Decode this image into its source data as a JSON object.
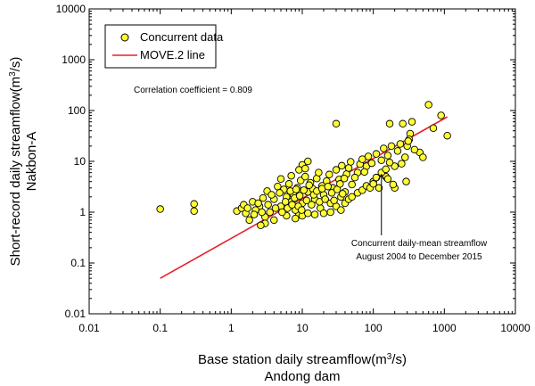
{
  "chart_data": {
    "type": "scatter",
    "log_x": true,
    "log_y": true,
    "xlim": [
      0.01,
      10000
    ],
    "ylim": [
      0.01,
      10000
    ],
    "x_ticks": [
      "0.01",
      "0.1",
      "1",
      "10",
      "100",
      "1000",
      "10000"
    ],
    "y_ticks": [
      "0.01",
      "0.1",
      "1",
      "10",
      "100",
      "1000",
      "10000"
    ],
    "xlabel_line1": "Base station daily streamflow(m",
    "xlabel_sup": "3",
    "xlabel_tail": "/s)",
    "xlabel_line2": "Andong dam",
    "ylabel_line1": "Short-record daily streamflow(m",
    "ylabel_sup": "3",
    "ylabel_tail": "/s)",
    "ylabel_line2": "Nakbon-A",
    "legend": {
      "position": "top-left",
      "items": [
        {
          "name": "Concurrent data",
          "marker": "circle"
        },
        {
          "name": "MOVE.2 line",
          "marker": "line"
        }
      ]
    },
    "annotations": {
      "correlation": "Correlation coefficient = 0.809",
      "note_line1": "Concurrent daily-mean streamflow",
      "note_line2": "August 2004 to December 2015",
      "arrow_tip": [
        130,
        5.5
      ]
    },
    "colors": {
      "points_fill": "#ffff33",
      "points_stroke": "#000000",
      "line": "#e8202a"
    },
    "series": [
      {
        "name": "Concurrent data",
        "type": "scatter",
        "points": [
          [
            0.1,
            1.15
          ],
          [
            0.3,
            1.05
          ],
          [
            0.3,
            1.45
          ],
          [
            1.2,
            1.05
          ],
          [
            1.4,
            1.2
          ],
          [
            600,
            130
          ],
          [
            900,
            80
          ],
          [
            1100,
            32
          ],
          [
            700,
            45
          ],
          [
            350,
            60
          ],
          [
            330,
            35
          ],
          [
            320,
            27
          ],
          [
            260,
            55
          ],
          [
            30,
            55
          ],
          [
            170,
            55
          ],
          [
            300,
            20
          ],
          [
            450,
            15
          ],
          [
            500,
            12
          ],
          [
            250,
            9
          ],
          [
            200,
            8
          ],
          [
            150,
            5
          ],
          [
            160,
            4.5
          ],
          [
            200,
            3
          ],
          [
            190,
            3.5
          ],
          [
            290,
            4
          ],
          [
            60,
            6
          ],
          [
            80,
            8
          ],
          [
            100,
            4
          ],
          [
            120,
            3
          ],
          [
            50,
            3.5
          ],
          [
            40,
            2.5
          ],
          [
            35,
            2
          ],
          [
            25,
            1.5
          ],
          [
            20,
            2.2
          ],
          [
            18,
            1.2
          ],
          [
            15,
            1.8
          ],
          [
            12,
            2.5
          ],
          [
            10,
            1.5
          ],
          [
            9,
            0.9
          ],
          [
            8,
            1.1
          ],
          [
            7,
            1.6
          ],
          [
            6,
            2
          ],
          [
            5,
            1.3
          ],
          [
            4,
            1.8
          ],
          [
            3.5,
            1.0
          ],
          [
            3,
            0.8
          ],
          [
            2.5,
            1.3
          ],
          [
            2,
            1.6
          ],
          [
            1.8,
            0.7
          ],
          [
            1.6,
            0.95
          ],
          [
            2.2,
            1.1
          ],
          [
            2.8,
            1.9
          ],
          [
            3.2,
            2.6
          ],
          [
            4.5,
            3.2
          ],
          [
            5.5,
            2.8
          ],
          [
            6.5,
            3.6
          ],
          [
            7.5,
            2.2
          ],
          [
            8.5,
            3.0
          ],
          [
            9.5,
            4.2
          ],
          [
            11,
            5.0
          ],
          [
            13,
            3.8
          ],
          [
            14,
            2.9
          ],
          [
            16,
            4.6
          ],
          [
            17,
            6.0
          ],
          [
            19,
            3.3
          ],
          [
            22,
            4.1
          ],
          [
            24,
            5.5
          ],
          [
            27,
            3.0
          ],
          [
            30,
            6.8
          ],
          [
            33,
            4.4
          ],
          [
            36,
            8.2
          ],
          [
            42,
            5.6
          ],
          [
            45,
            7.4
          ],
          [
            48,
            9.8
          ],
          [
            55,
            4.8
          ],
          [
            65,
            8.8
          ],
          [
            70,
            11
          ],
          [
            75,
            6.2
          ],
          [
            85,
            12.5
          ],
          [
            95,
            9.2
          ],
          [
            110,
            14
          ],
          [
            130,
            10.5
          ],
          [
            140,
            18
          ],
          [
            160,
            13
          ],
          [
            180,
            20
          ],
          [
            220,
            16
          ],
          [
            240,
            22
          ],
          [
            280,
            12
          ],
          [
            310,
            25
          ],
          [
            380,
            17
          ],
          [
            10,
            8.5
          ],
          [
            12,
            10
          ],
          [
            9,
            6.8
          ],
          [
            11,
            7.2
          ],
          [
            7,
            5.2
          ],
          [
            5,
            4.5
          ],
          [
            8,
            0.75
          ],
          [
            10,
            0.85
          ],
          [
            12,
            0.95
          ],
          [
            15,
            0.9
          ],
          [
            6,
            0.85
          ],
          [
            4,
            0.7
          ],
          [
            3,
            0.6
          ],
          [
            2.6,
            0.55
          ],
          [
            20,
            0.95
          ],
          [
            25,
            1.0
          ],
          [
            30,
            1.3
          ],
          [
            35,
            1.1
          ],
          [
            40,
            1.5
          ],
          [
            45,
            1.8
          ],
          [
            50,
            2.0
          ],
          [
            60,
            2.4
          ],
          [
            70,
            2.7
          ],
          [
            80,
            3.3
          ],
          [
            90,
            3.0
          ],
          [
            100,
            3.6
          ],
          [
            110,
            4.8
          ],
          [
            130,
            6.0
          ],
          [
            150,
            7.0
          ],
          [
            170,
            9.5
          ],
          [
            1.5,
            1.4
          ],
          [
            1.7,
            1.2
          ],
          [
            2.1,
            0.9
          ],
          [
            2.4,
            1.5
          ],
          [
            2.7,
            1.0
          ],
          [
            3.3,
            1.4
          ],
          [
            3.7,
            2.2
          ],
          [
            4.2,
            1.2
          ],
          [
            4.8,
            2.4
          ],
          [
            5.2,
            1.0
          ],
          [
            5.8,
            1.6
          ],
          [
            6.2,
            1.2
          ],
          [
            6.8,
            2.6
          ],
          [
            7.2,
            1.4
          ],
          [
            7.8,
            1.9
          ],
          [
            8.2,
            2.8
          ],
          [
            8.8,
            1.3
          ],
          [
            9.2,
            2.1
          ],
          [
            9.8,
            1.1
          ],
          [
            10.5,
            2.7
          ],
          [
            11.5,
            1.7
          ],
          [
            12.5,
            3.4
          ],
          [
            13.5,
            1.4
          ],
          [
            14.5,
            2.2
          ],
          [
            16,
            2.6
          ],
          [
            17.5,
            1.6
          ],
          [
            19,
            2.9
          ],
          [
            21,
            1.8
          ],
          [
            23,
            3.2
          ],
          [
            26,
            2.4
          ],
          [
            28,
            1.7
          ],
          [
            31,
            2.8
          ],
          [
            34,
            3.6
          ],
          [
            37,
            2.3
          ],
          [
            39,
            4.6
          ]
        ]
      },
      {
        "name": "MOVE.2 line",
        "type": "line",
        "points": [
          [
            0.1,
            0.05
          ],
          [
            1100,
            75
          ]
        ]
      }
    ]
  }
}
